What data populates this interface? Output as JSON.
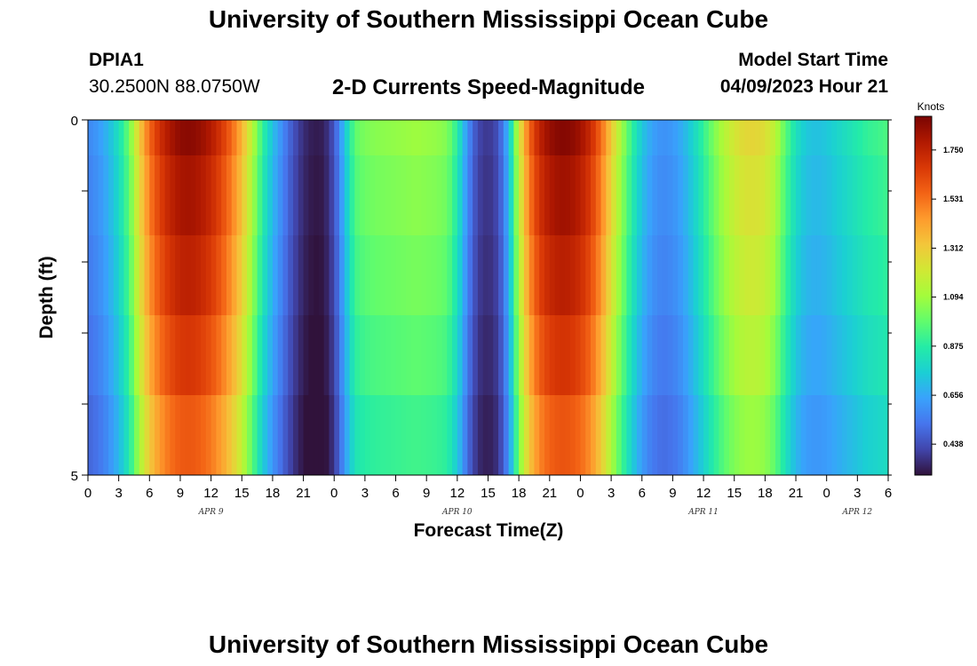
{
  "page": {
    "title": "University of Southern Mississippi Ocean Cube",
    "station_id": "DPIA1",
    "coordinates": "30.2500N  88.0750W",
    "subtitle": "2-D Currents Speed-Magnitude",
    "model_start_label": "Model Start Time",
    "model_start_value": "04/09/2023 Hour 21",
    "footer_title": "University of Southern Mississippi Ocean Cube"
  },
  "chart_data": {
    "type": "heatmap",
    "title": "2-D Currents Speed-Magnitude",
    "xlabel": "Forecast Time(Z)",
    "ylabel": "Depth (ft)",
    "y_ticks": [
      "0",
      "5"
    ],
    "y_range": [
      0,
      5
    ],
    "x_tick_labels": [
      "0",
      "3",
      "6",
      "9",
      "12",
      "15",
      "18",
      "21",
      "0",
      "3",
      "6",
      "9",
      "12",
      "15",
      "18",
      "21",
      "0",
      "3",
      "6",
      "9",
      "12",
      "15",
      "18",
      "21",
      "0",
      "3",
      "6"
    ],
    "x_start_hour": 0,
    "x_end_hour": 78,
    "day_labels": [
      {
        "label": "APR 9",
        "hour": 12
      },
      {
        "label": "APR 10",
        "hour": 36
      },
      {
        "label": "APR 11",
        "hour": 60
      },
      {
        "label": "APR 12",
        "hour": 75
      }
    ],
    "depth_layers": 5,
    "speed_profile_knots": [
      [
        0,
        0.58
      ],
      [
        1,
        0.62
      ],
      [
        2,
        0.7
      ],
      [
        3,
        0.82
      ],
      [
        4,
        1.0
      ],
      [
        5,
        1.3
      ],
      [
        6,
        1.55
      ],
      [
        7,
        1.7
      ],
      [
        8,
        1.8
      ],
      [
        9,
        1.86
      ],
      [
        10,
        1.87
      ],
      [
        11,
        1.84
      ],
      [
        12,
        1.78
      ],
      [
        13,
        1.68
      ],
      [
        14,
        1.55
      ],
      [
        15,
        1.38
      ],
      [
        16,
        1.15
      ],
      [
        17,
        0.9
      ],
      [
        18,
        0.72
      ],
      [
        19,
        0.58
      ],
      [
        20,
        0.45
      ],
      [
        21,
        0.36
      ],
      [
        22,
        0.32
      ],
      [
        23,
        0.33
      ],
      [
        24,
        0.45
      ],
      [
        25,
        0.72
      ],
      [
        26,
        0.98
      ],
      [
        27,
        1.03
      ],
      [
        28,
        1.05
      ],
      [
        29,
        1.06
      ],
      [
        30,
        1.07
      ],
      [
        31,
        1.08
      ],
      [
        32,
        1.09
      ],
      [
        33,
        1.08
      ],
      [
        34,
        1.07
      ],
      [
        35,
        1.04
      ],
      [
        36,
        0.88
      ],
      [
        37,
        0.6
      ],
      [
        38,
        0.42
      ],
      [
        39,
        0.38
      ],
      [
        40,
        0.44
      ],
      [
        41,
        0.7
      ],
      [
        42,
        1.2
      ],
      [
        43,
        1.55
      ],
      [
        44,
        1.75
      ],
      [
        45,
        1.84
      ],
      [
        46,
        1.88
      ],
      [
        47,
        1.87
      ],
      [
        48,
        1.82
      ],
      [
        49,
        1.72
      ],
      [
        50,
        1.55
      ],
      [
        51,
        1.32
      ],
      [
        52,
        1.1
      ],
      [
        53,
        0.9
      ],
      [
        54,
        0.74
      ],
      [
        55,
        0.64
      ],
      [
        56,
        0.6
      ],
      [
        57,
        0.62
      ],
      [
        58,
        0.68
      ],
      [
        59,
        0.78
      ],
      [
        60,
        0.9
      ],
      [
        61,
        1.03
      ],
      [
        62,
        1.14
      ],
      [
        63,
        1.22
      ],
      [
        64,
        1.27
      ],
      [
        65,
        1.28
      ],
      [
        66,
        1.25
      ],
      [
        67,
        1.15
      ],
      [
        68,
        0.97
      ],
      [
        69,
        0.82
      ],
      [
        70,
        0.74
      ],
      [
        71,
        0.72
      ],
      [
        72,
        0.74
      ],
      [
        73,
        0.78
      ],
      [
        74,
        0.82
      ],
      [
        75,
        0.86
      ],
      [
        76,
        0.9
      ],
      [
        77,
        0.92
      ],
      [
        78,
        0.95
      ]
    ],
    "depth_factors": [
      1.0,
      0.97,
      0.94,
      0.9,
      0.85
    ],
    "colorbar": {
      "unit": "Knots",
      "min": 0.3,
      "max": 1.9,
      "ticks": [
        "1.750",
        "1.531",
        "1.312",
        "1.094",
        "0.875",
        "0.656",
        "0.438"
      ],
      "colormap": [
        "#30123b",
        "#4145ab",
        "#4675ed",
        "#39a2fc",
        "#1bcfd4",
        "#24eca6",
        "#61fc6c",
        "#a4fc3b",
        "#d1e834",
        "#f3c63a",
        "#fe9b2d",
        "#f36315",
        "#d93806",
        "#b11901",
        "#7a0402"
      ]
    }
  }
}
